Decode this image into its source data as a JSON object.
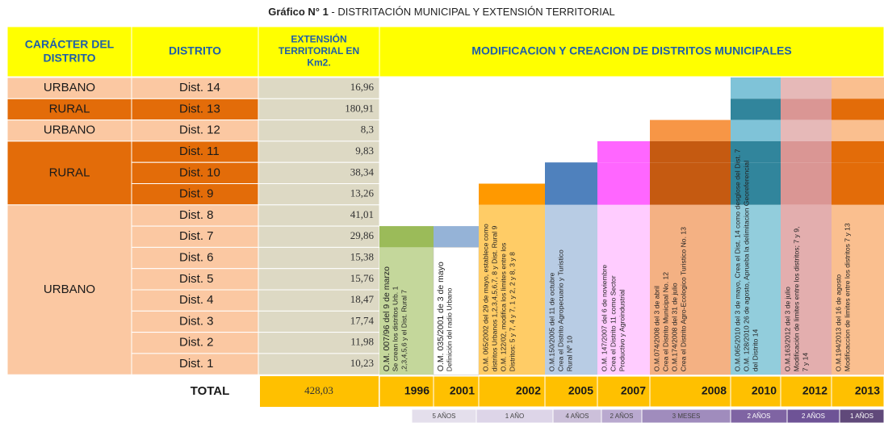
{
  "title": {
    "bold": "Gráfico N° 1",
    "rest": " - DISTRITACIÓN MUNICIPAL Y EXTENSIÓN TERRITORIAL"
  },
  "headers": [
    "CARÁCTER DEL DISTRITO",
    "DISTRITO",
    "EXTENSIÓN TERRITORIAL EN Km2.",
    "MODIFICACION Y CREACION DE DISTRITOS MUNICIPALES"
  ],
  "character": [
    "URBANO",
    "RURAL",
    "URBANO",
    "RURAL",
    "URBANO"
  ],
  "rows": [
    {
      "district": "Dist. 14",
      "extension": "16,96"
    },
    {
      "district": "Dist. 13",
      "extension": "180,91"
    },
    {
      "district": "Dist. 12",
      "extension": "8,3"
    },
    {
      "district": "Dist. 11",
      "extension": "9,83"
    },
    {
      "district": "Dist. 10",
      "extension": "38,34"
    },
    {
      "district": "Dist. 9",
      "extension": "13,26"
    },
    {
      "district": "Dist. 8",
      "extension": "41,01"
    },
    {
      "district": "Dist. 7",
      "extension": "29,86"
    },
    {
      "district": "Dist. 6",
      "extension": "15,38"
    },
    {
      "district": "Dist. 5",
      "extension": "15,76"
    },
    {
      "district": "Dist. 4",
      "extension": "18,47"
    },
    {
      "district": "Dist. 3",
      "extension": "17,74"
    },
    {
      "district": "Dist. 2",
      "extension": "11,98"
    },
    {
      "district": "Dist. 1",
      "extension": "10,23"
    }
  ],
  "total": {
    "label": "TOTAL",
    "value": "428,03"
  },
  "timeline": [
    {
      "year": "1996",
      "text": [
        "O.M. 007/96 del 9 de marzo",
        "Se crean los distritos Urb. 1",
        ",2,3,4,5,6 y el Dist. Rural 7"
      ]
    },
    {
      "year": "2001",
      "text": [
        "O.M. 035/2001 de 3 de mayo",
        "Definición del radio Urbano"
      ]
    },
    {
      "year": "2002",
      "text": [
        "O.M. 065/2002 del 29 de mayo, establece como",
        "distritos Urbanos 1,2,3,4,5,6,7, 8 y Dist. Rural 9",
        "O.M. 122/02, modifica los limites entre los",
        "Distritos: 5 y 7, 4 y 7, 1 y 2, 2 y 8, 3 y 8"
      ]
    },
    {
      "year": "2005",
      "text": [
        "O.M.150/2005 del 11 de octubre",
        "Crea el Distrito Agropecuario y Turistico",
        "Rural Nº 10"
      ]
    },
    {
      "year": "2007",
      "text": [
        "O.M. 147/2007 del 6 de noviembre",
        "Crea el Distrito 11 como Sector",
        "Productivo y Agroindustrial"
      ]
    },
    {
      "year": "2008",
      "text": [
        "O.M.074/2008 del 3 de abril",
        "Crea el Distrito Municipal No. 12",
        "O.M.174/2008 del 31 de julio",
        "Crea el Distrito Agro-Ecologico Turistico No. 13"
      ]
    },
    {
      "year": "2010",
      "text": [
        "O.M.065/2010 del 3 de mayo, Crea el Dist. 14 como desglose del Dist. 7",
        "O.M. 128/2010 26 de agosto, Apruebа la delimitacion Georeferencial",
        "del Distrito 14"
      ]
    },
    {
      "year": "2012",
      "text": [
        "O.M.163/2012 del 3 de julio",
        "Modificación de limites entre los distritos; 7 y 9,",
        "7 y 14"
      ]
    },
    {
      "year": "2013",
      "text": [
        "O.M.194/2013 del 16 de agosto",
        "Modificaccion de limites entre los distritos 7 y 13"
      ]
    }
  ],
  "periods": [
    "5 AÑOS",
    "1 AÑO",
    "4 AÑOS",
    "2 AÑOS",
    "3 MESES",
    "2 AÑOS",
    "2 AÑOS",
    "1 AÑOS"
  ]
}
